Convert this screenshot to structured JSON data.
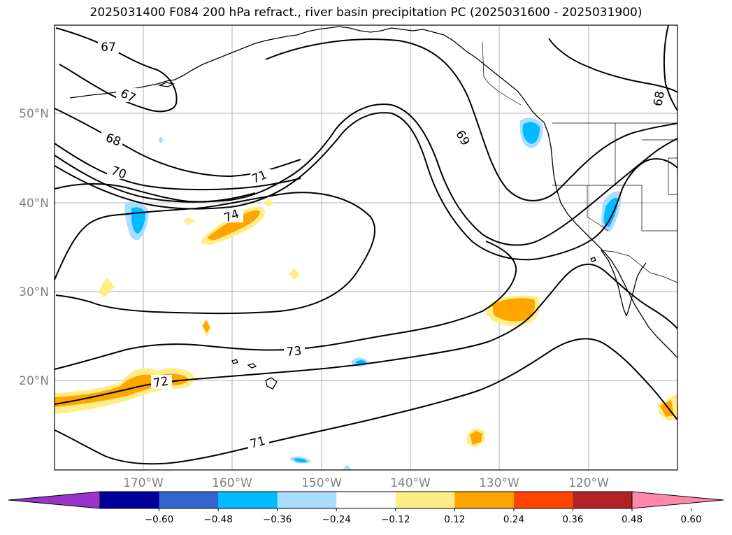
{
  "title": "2025031400 F084 200 hPa refract., river basin precipitation PC (2025031600 - 2025031900)",
  "lat_labels": [
    "50°N",
    "40°N",
    "30°N",
    "20°N"
  ],
  "lon_labels": [
    "170°W",
    "160°W",
    "150°W",
    "140°W",
    "130°W",
    "120°W"
  ],
  "contour_labels": [
    "67",
    "67",
    "68",
    "68",
    "69",
    "70",
    "71",
    "71",
    "72",
    "73",
    "74"
  ],
  "colorbar": {
    "colors": [
      "#9933cc",
      "#000099",
      "#3366cc",
      "#00bbff",
      "#aaddff",
      "#ffffff",
      "#ffee88",
      "#ffa500",
      "#ff4400",
      "#b22222",
      "#ff88aa"
    ],
    "tick_labels": [
      "−0.60",
      "−0.48",
      "−0.36",
      "−0.24",
      "−0.12",
      "0.12",
      "0.24",
      "0.36",
      "0.48",
      "0.60"
    ]
  },
  "colors": {
    "gridline": "#b0b0b0",
    "contour": "#000000",
    "positive_light": "#ffee88",
    "positive": "#ffa500",
    "negative_light": "#aaddff",
    "negative": "#00bbff"
  }
}
